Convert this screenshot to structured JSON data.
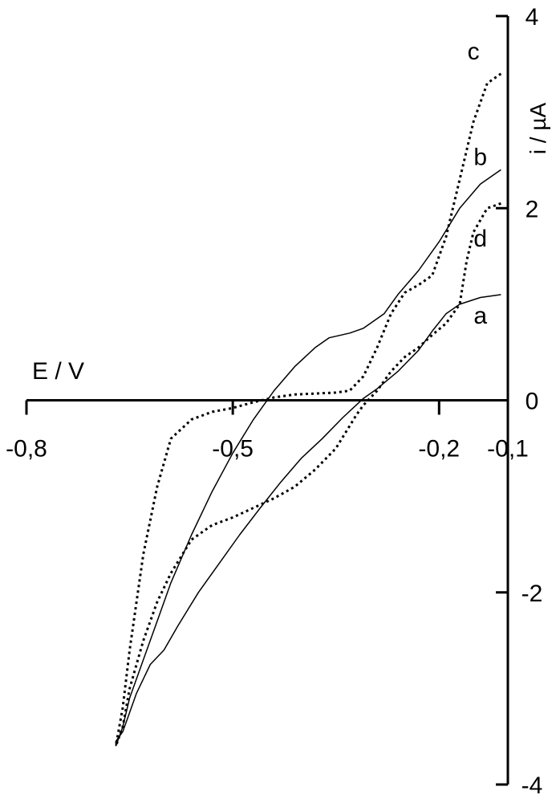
{
  "chart_data": {
    "type": "line",
    "xlabel": "E / V",
    "ylabel": "i / µA",
    "xlim": [
      -0.8,
      -0.1
    ],
    "ylim": [
      -4,
      4
    ],
    "x_ticks": [
      -0.8,
      -0.5,
      -0.2,
      -0.1
    ],
    "x_tick_labels": [
      "-0,8",
      "-0,5",
      "-0,2",
      "-0,1"
    ],
    "y_ticks": [
      -4,
      -2,
      0,
      2,
      4
    ],
    "y_tick_labels": [
      "-4",
      "-2",
      "0",
      "2",
      "4"
    ],
    "grid": false,
    "series": [
      {
        "name": "a",
        "style": "solid",
        "color": "#000000",
        "x": [
          -0.11,
          -0.14,
          -0.17,
          -0.19,
          -0.21,
          -0.23,
          -0.26,
          -0.29,
          -0.31,
          -0.34,
          -0.37,
          -0.4,
          -0.43,
          -0.46,
          -0.49,
          -0.52,
          -0.55,
          -0.58,
          -0.6,
          -0.62,
          -0.63,
          -0.64,
          -0.65,
          -0.66,
          -0.67,
          -0.67
        ],
        "y": [
          1.1,
          1.07,
          1.0,
          0.9,
          0.72,
          0.52,
          0.3,
          0.12,
          0.02,
          -0.18,
          -0.4,
          -0.6,
          -0.85,
          -1.12,
          -1.4,
          -1.7,
          -2.0,
          -2.35,
          -2.6,
          -2.75,
          -2.9,
          -3.05,
          -3.25,
          -3.45,
          -3.55,
          -3.6
        ]
      },
      {
        "name": "b",
        "style": "solid",
        "color": "#000000",
        "x": [
          -0.11,
          -0.14,
          -0.17,
          -0.2,
          -0.23,
          -0.26,
          -0.28,
          -0.31,
          -0.33,
          -0.36,
          -0.38,
          -0.41,
          -0.44,
          -0.47,
          -0.5,
          -0.53,
          -0.56,
          -0.59,
          -0.61,
          -0.63,
          -0.65,
          -0.66,
          -0.67
        ],
        "y": [
          2.4,
          2.25,
          2.0,
          1.65,
          1.35,
          1.1,
          0.9,
          0.75,
          0.7,
          0.65,
          0.55,
          0.35,
          0.1,
          -0.2,
          -0.55,
          -0.95,
          -1.4,
          -1.9,
          -2.3,
          -2.7,
          -3.1,
          -3.4,
          -3.6
        ]
      },
      {
        "name": "c",
        "style": "dotted",
        "color": "#000000",
        "x": [
          -0.11,
          -0.13,
          -0.15,
          -0.17,
          -0.19,
          -0.21,
          -0.23,
          -0.25,
          -0.27,
          -0.29,
          -0.31,
          -0.33,
          -0.35,
          -0.38,
          -0.41,
          -0.44,
          -0.47,
          -0.5,
          -0.53,
          -0.56,
          -0.59,
          -0.61,
          -0.63,
          -0.65,
          -0.66,
          -0.67
        ],
        "y": [
          3.4,
          3.3,
          2.9,
          2.3,
          1.7,
          1.3,
          1.2,
          1.12,
          0.9,
          0.55,
          0.25,
          0.1,
          0.08,
          0.07,
          0.06,
          0.03,
          -0.02,
          -0.08,
          -0.12,
          -0.2,
          -0.4,
          -0.9,
          -1.6,
          -2.6,
          -3.2,
          -3.6
        ]
      },
      {
        "name": "d",
        "style": "dotted",
        "color": "#000000",
        "x": [
          -0.11,
          -0.13,
          -0.15,
          -0.16,
          -0.17,
          -0.19,
          -0.21,
          -0.23,
          -0.25,
          -0.27,
          -0.29,
          -0.31,
          -0.32,
          -0.35,
          -0.38,
          -0.41,
          -0.44,
          -0.47,
          -0.5,
          -0.53,
          -0.56,
          -0.59,
          -0.61,
          -0.63,
          -0.65,
          -0.66,
          -0.67
        ],
        "y": [
          2.05,
          2.0,
          1.75,
          1.45,
          1.0,
          0.8,
          0.68,
          0.55,
          0.45,
          0.3,
          0.1,
          -0.05,
          -0.15,
          -0.5,
          -0.72,
          -0.9,
          -1.02,
          -1.12,
          -1.22,
          -1.3,
          -1.45,
          -1.8,
          -2.1,
          -2.5,
          -3.0,
          -3.4,
          -3.6
        ]
      }
    ],
    "series_labels": [
      {
        "text": "a",
        "x": -0.14,
        "y": 0.8
      },
      {
        "text": "b",
        "x": -0.14,
        "y": 2.45
      },
      {
        "text": "c",
        "x": -0.15,
        "y": 3.55
      },
      {
        "text": "d",
        "x": -0.14,
        "y": 1.6
      }
    ]
  }
}
